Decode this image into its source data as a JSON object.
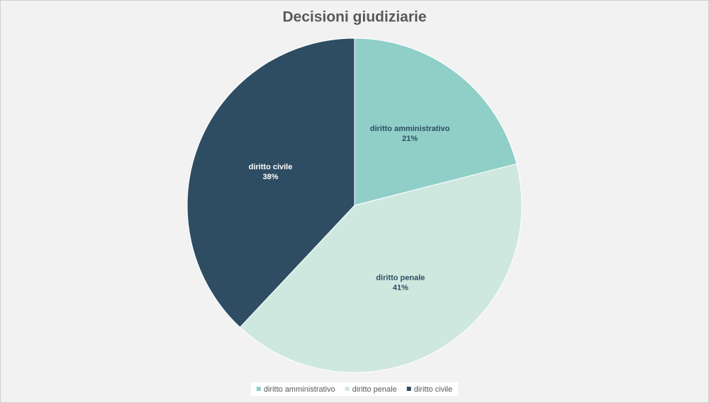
{
  "chart_data": {
    "type": "pie",
    "title": "Decisioni giudiziarie",
    "categories": [
      "diritto amministrativo",
      "diritto penale",
      "diritto civile"
    ],
    "values": [
      21,
      41,
      38
    ],
    "value_labels": [
      "21%",
      "41%",
      "38%"
    ],
    "colors": [
      "#8fcfc8",
      "#cfe8df",
      "#2e4d63"
    ],
    "legend": "bottom"
  }
}
